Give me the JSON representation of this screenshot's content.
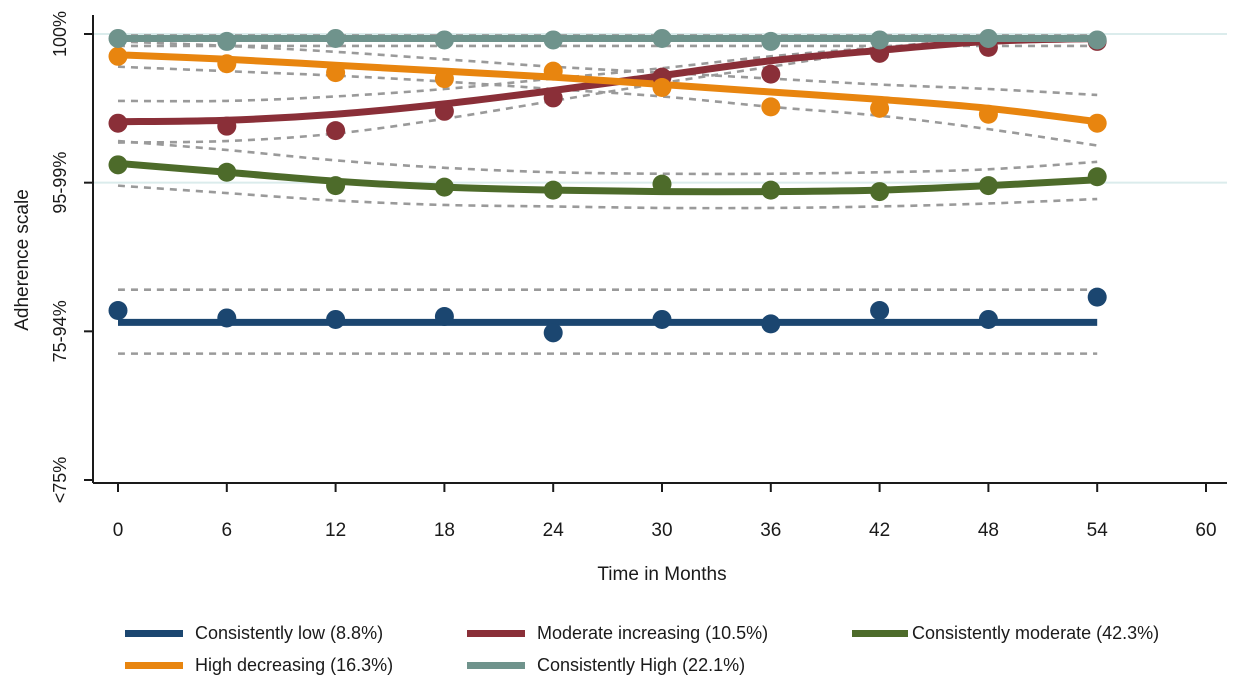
{
  "colors": {
    "gridline": "#dbecec",
    "axis": "#1a1a1a",
    "ci": "#9a9a9a"
  },
  "chart_data": {
    "type": "line",
    "xlabel": "Time in Months",
    "ylabel": "Adherence scale",
    "x_ticks": [
      0,
      6,
      12,
      18,
      24,
      30,
      36,
      42,
      48,
      54,
      60
    ],
    "xlim": [
      0,
      60
    ],
    "ylim": [
      1,
      4
    ],
    "y_ticks": [
      {
        "value": 1,
        "label": "<75%"
      },
      {
        "value": 2,
        "label": "75-94%"
      },
      {
        "value": 3,
        "label": "95-99%"
      },
      {
        "value": 4,
        "label": "100%"
      }
    ],
    "grid": "horizontal at 95-99% and 100%",
    "legend": "bottom",
    "x": [
      0,
      6,
      12,
      18,
      24,
      30,
      36,
      42,
      48,
      54
    ],
    "series": [
      {
        "name": "Consistently low (8.8%)",
        "color": "#1b4670",
        "observed": [
          2.14,
          2.09,
          2.08,
          2.1,
          1.99,
          2.08,
          2.05,
          2.14,
          2.08,
          2.23
        ],
        "fitted": [
          2.06,
          2.06,
          2.06,
          2.06,
          2.06,
          2.06,
          2.06,
          2.06,
          2.06,
          2.06
        ],
        "ci_lower": [
          1.85,
          1.85,
          1.85,
          1.85,
          1.85,
          1.85,
          1.85,
          1.85,
          1.85,
          1.85
        ],
        "ci_upper": [
          2.28,
          2.28,
          2.28,
          2.28,
          2.28,
          2.28,
          2.28,
          2.28,
          2.28,
          2.28
        ]
      },
      {
        "name": "Moderate increasing (10.5%)",
        "color": "#8a2f38",
        "observed": [
          3.4,
          3.38,
          3.35,
          3.48,
          3.57,
          3.71,
          3.73,
          3.87,
          3.91,
          3.95
        ],
        "fitted": [
          3.41,
          3.42,
          3.46,
          3.53,
          3.62,
          3.72,
          3.82,
          3.89,
          3.95,
          3.97
        ],
        "ci_lower": [
          3.27,
          3.28,
          3.33,
          3.43,
          3.55,
          3.67,
          3.78,
          3.89,
          3.94,
          3.96
        ],
        "ci_upper": [
          3.55,
          3.55,
          3.58,
          3.63,
          3.7,
          3.77,
          3.85,
          3.91,
          3.97,
          3.99
        ]
      },
      {
        "name": "Consistently moderate (42.3%)",
        "color": "#4d6b2a",
        "observed": [
          3.12,
          3.07,
          2.98,
          2.97,
          2.95,
          2.99,
          2.95,
          2.94,
          2.98,
          3.04
        ],
        "fitted": [
          3.13,
          3.07,
          3.01,
          2.97,
          2.95,
          2.94,
          2.94,
          2.95,
          2.98,
          3.02
        ],
        "ci_lower": [
          2.98,
          2.93,
          2.88,
          2.85,
          2.84,
          2.83,
          2.83,
          2.84,
          2.86,
          2.89
        ],
        "ci_upper": [
          3.28,
          3.22,
          3.15,
          3.1,
          3.07,
          3.06,
          3.06,
          3.07,
          3.09,
          3.14
        ]
      },
      {
        "name": "High decreasing (16.3%)",
        "color": "#e8850f",
        "observed": [
          3.85,
          3.8,
          3.74,
          3.7,
          3.75,
          3.64,
          3.51,
          3.5,
          3.46,
          3.4
        ],
        "fitted": [
          3.86,
          3.83,
          3.79,
          3.75,
          3.71,
          3.66,
          3.61,
          3.56,
          3.5,
          3.41
        ],
        "ci_lower": [
          3.78,
          3.75,
          3.72,
          3.68,
          3.63,
          3.58,
          3.51,
          3.45,
          3.36,
          3.25
        ],
        "ci_upper": [
          3.95,
          3.92,
          3.88,
          3.83,
          3.78,
          3.74,
          3.7,
          3.66,
          3.63,
          3.59
        ]
      },
      {
        "name": "Consistently High (22.1%)",
        "color": "#6f938c",
        "observed": [
          3.97,
          3.95,
          3.97,
          3.96,
          3.96,
          3.97,
          3.95,
          3.96,
          3.97,
          3.96
        ],
        "fitted": [
          3.97,
          3.97,
          3.97,
          3.97,
          3.97,
          3.97,
          3.97,
          3.97,
          3.97,
          3.97
        ],
        "ci_lower": [
          3.92,
          3.92,
          3.92,
          3.92,
          3.92,
          3.92,
          3.92,
          3.92,
          3.92,
          3.92
        ],
        "ci_upper": [
          3.99,
          3.99,
          3.99,
          3.99,
          3.99,
          3.99,
          3.99,
          3.99,
          3.99,
          3.99
        ]
      }
    ]
  }
}
